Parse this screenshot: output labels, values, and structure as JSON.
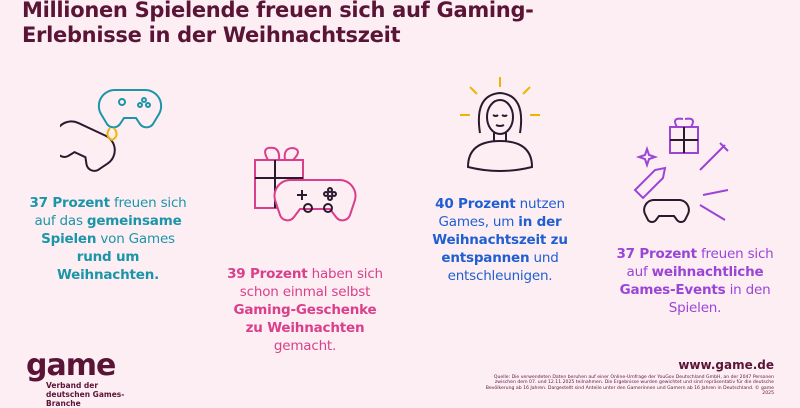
{
  "title": "Millionen Spielende freuen sich auf Gaming-Erlebnisse in der Weihnachtszeit",
  "colors": {
    "background": "#fdeef4",
    "title": "#5a1436",
    "teal": "#1b95a8",
    "pink": "#d93f8a",
    "blue": "#1f5fd1",
    "purple": "#9a45d6",
    "dark": "#2a1a2e"
  },
  "stats": [
    {
      "icon": "gamepads-icon",
      "segments": [
        {
          "t": "37 Prozent",
          "b": true
        },
        {
          "t": " freuen sich auf das ",
          "b": false
        },
        {
          "t": "gemeinsame Spielen",
          "b": true
        },
        {
          "t": " von Games ",
          "b": false
        },
        {
          "t": "rund um Weihnachten.",
          "b": true
        }
      ]
    },
    {
      "icon": "gift-gamepad-icon",
      "segments": [
        {
          "t": "39 Prozent",
          "b": true
        },
        {
          "t": " haben sich schon einmal selbst ",
          "b": false
        },
        {
          "t": "Gaming-Geschenke zu Weihnachten",
          "b": true
        },
        {
          "t": " gemacht.",
          "b": false
        }
      ]
    },
    {
      "icon": "relaxed-person-icon",
      "segments": [
        {
          "t": "40 Prozent",
          "b": true
        },
        {
          "t": " nutzen Games, um ",
          "b": false
        },
        {
          "t": "in der Weihnachtszeit zu entspannen",
          "b": true
        },
        {
          "t": " und entschleunigen.",
          "b": false
        }
      ]
    },
    {
      "icon": "game-events-icon",
      "segments": [
        {
          "t": "37 Prozent",
          "b": true
        },
        {
          "t": " freuen sich auf ",
          "b": false
        },
        {
          "t": "weihnachtliche Games-Events",
          "b": true
        },
        {
          "t": " in den Spielen.",
          "b": false
        }
      ]
    }
  ],
  "footer": {
    "logo": "game",
    "logo_sub": "Verband der deutschen Games-Branche",
    "url": "www.game.de",
    "source": "Quelle: Die verwendeten Daten beruhen auf einer Online-Umfrage der YouGov Deutschland GmbH, an der 2047 Personen zwischen dem 07. und 12.11.2025 teilnahmen. Die Ergebnisse wurden gewichtet und sind repräsentativ für die deutsche Bevölkerung ab 16 Jahren. Dargestellt sind Anteile unter den Gamerinnen und Gamern ab 16 Jahren in Deutschland. © game 2025"
  }
}
